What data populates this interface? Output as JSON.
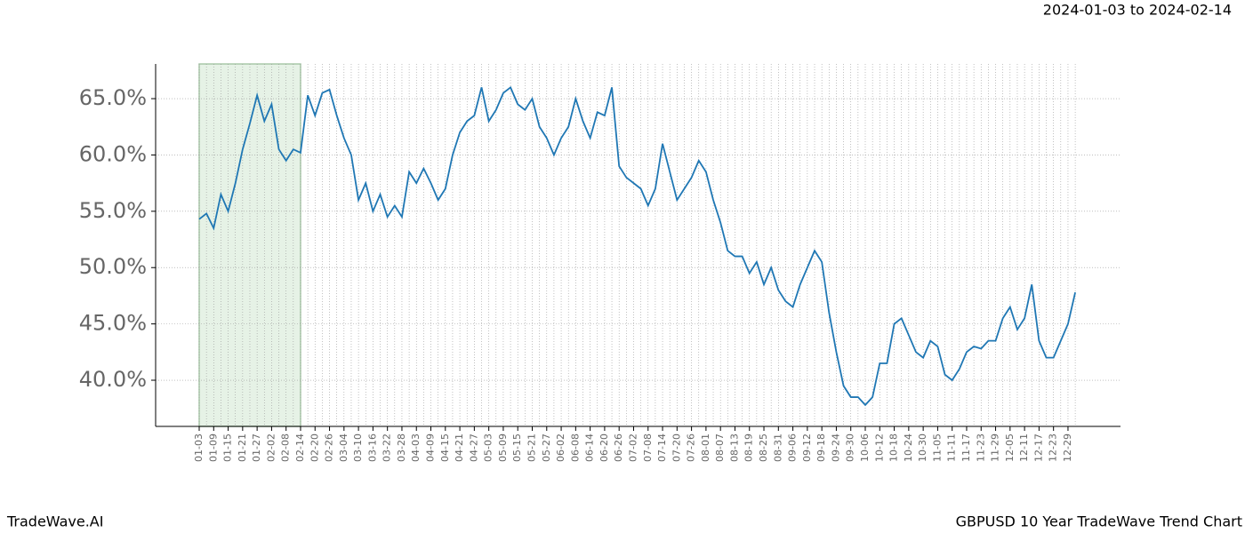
{
  "chart_data": {
    "type": "line",
    "title": "GBPUSD 10 Year TradeWave Trend Chart",
    "subtitle": "2024-01-03 to 2024-02-14",
    "brand": "TradeWave.AI",
    "categories": [
      "01-03",
      null,
      "01-09",
      null,
      "01-15",
      null,
      "01-21",
      null,
      "01-27",
      null,
      "02-02",
      null,
      "02-08",
      null,
      "02-14",
      null,
      "02-20",
      null,
      "02-26",
      null,
      "03-04",
      null,
      "03-10",
      null,
      "03-16",
      null,
      "03-22",
      null,
      "03-28",
      null,
      "04-03",
      null,
      "04-09",
      null,
      "04-15",
      null,
      "04-21",
      null,
      "04-27",
      null,
      "05-03",
      null,
      "05-09",
      null,
      "05-15",
      null,
      "05-21",
      null,
      "05-27",
      null,
      "06-02",
      null,
      "06-08",
      null,
      "06-14",
      null,
      "06-20",
      null,
      "06-26",
      null,
      "07-02",
      null,
      "07-08",
      null,
      "07-14",
      null,
      "07-20",
      null,
      "07-26",
      null,
      "08-01",
      null,
      "08-07",
      null,
      "08-13",
      null,
      "08-19",
      null,
      "08-25",
      null,
      "08-31",
      null,
      "09-06",
      null,
      "09-12",
      null,
      "09-18",
      null,
      "09-24",
      null,
      "09-30",
      null,
      "10-06",
      null,
      "10-12",
      null,
      "10-18",
      null,
      "10-24",
      null,
      "10-30",
      null,
      "11-05",
      null,
      "11-11",
      null,
      "11-17",
      null,
      "11-23",
      null,
      "11-29",
      null,
      "12-05",
      null,
      "12-11",
      null,
      "12-17",
      null,
      "12-23",
      null,
      "12-29",
      null
    ],
    "series": [
      {
        "color": "#1f77b4",
        "values": [
          54.3,
          54.8,
          53.5,
          56.5,
          55.0,
          57.5,
          60.5,
          62.8,
          65.3,
          63.0,
          64.5,
          60.5,
          59.5,
          60.5,
          60.2,
          65.3,
          63.5,
          65.5,
          65.8,
          63.5,
          61.5,
          60.0,
          56.0,
          57.5,
          55.0,
          56.5,
          54.5,
          55.5,
          54.5,
          58.5,
          57.5,
          58.8,
          57.5,
          56.0,
          57.0,
          60.0,
          62.0,
          63.0,
          63.5,
          66.0,
          63.0,
          64.0,
          65.5,
          66.0,
          64.5,
          64.0,
          65.0,
          62.5,
          61.5,
          60.0,
          61.5,
          62.5,
          65.0,
          63.0,
          61.5,
          63.8,
          63.5,
          66.0,
          59.0,
          58.0,
          57.5,
          57.0,
          55.5,
          57.0,
          61.0,
          58.5,
          56.0,
          57.0,
          58.0,
          59.5,
          58.5,
          56.0,
          54.0,
          51.5,
          51.0,
          51.0,
          49.5,
          50.5,
          48.5,
          50.0,
          48.0,
          47.0,
          46.5,
          48.5,
          50.0,
          51.5,
          50.5,
          46.0,
          42.5,
          39.5,
          38.5,
          38.5,
          37.8,
          38.5,
          41.5,
          41.5,
          45.0,
          45.5,
          44.0,
          42.5,
          42.0,
          43.5,
          43.0,
          40.5,
          40.0,
          41.0,
          42.5,
          43.0,
          42.8,
          43.5,
          43.5,
          45.5,
          46.5,
          44.5,
          45.5,
          48.5,
          43.5,
          42.0,
          42.0,
          43.5,
          45.0,
          47.8
        ]
      }
    ],
    "highlight_span": [
      0,
      14
    ],
    "highlight_color": "#e6f2e6",
    "ylim": [
      35.9,
      68.08
    ],
    "yticks": [
      {
        "value": 40,
        "label": "40.0%"
      },
      {
        "value": 45,
        "label": "45.0%"
      },
      {
        "value": 50,
        "label": "50.0%"
      },
      {
        "value": 55,
        "label": "55.0%"
      },
      {
        "value": 60,
        "label": "60.0%"
      },
      {
        "value": 65,
        "label": "65.0%"
      }
    ],
    "grid": true
  }
}
